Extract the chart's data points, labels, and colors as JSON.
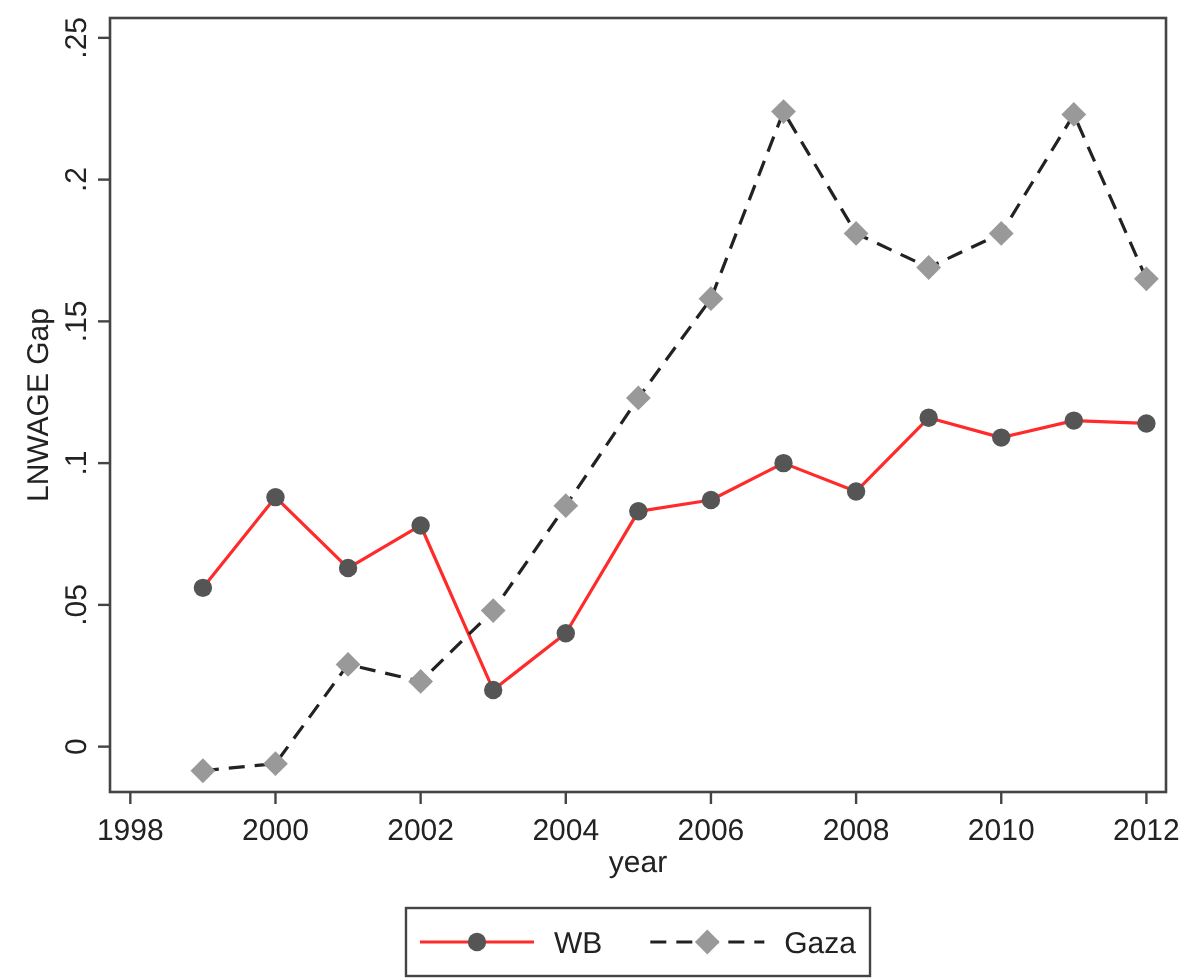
{
  "chart_data": {
    "type": "line",
    "xlabel": "year",
    "ylabel": "LNWAGE Gap",
    "xlim": [
      1997.72,
      2012.27
    ],
    "xticks": [
      1998,
      2000,
      2002,
      2004,
      2006,
      2008,
      2010,
      2012
    ],
    "ylim": [
      -0.016,
      0.257
    ],
    "yticks": [
      {
        "value": 0,
        "label": "0"
      },
      {
        "value": 0.05,
        "label": ".05"
      },
      {
        "value": 0.1,
        "label": ".1"
      },
      {
        "value": 0.15,
        "label": ".15"
      },
      {
        "value": 0.2,
        "label": ".2"
      },
      {
        "value": 0.25,
        "label": ".25"
      }
    ],
    "x": [
      1999,
      2000,
      2001,
      2002,
      2003,
      2004,
      2005,
      2006,
      2007,
      2008,
      2009,
      2010,
      2011,
      2012
    ],
    "legend": "bottom",
    "series": [
      {
        "name": "WB",
        "color": "#ff2a2a",
        "marker": "circle",
        "line_style": "solid",
        "colors": [
          "#555555",
          "#555555",
          "#555555",
          "#555555",
          "#555555",
          "#555555",
          "#555555",
          "#555555",
          "#555555",
          "#555555",
          "#555555",
          "#555555",
          "#555555",
          "#555555"
        ],
        "values": [
          0.056,
          0.088,
          0.063,
          0.078,
          0.02,
          0.04,
          0.083,
          0.087,
          0.1,
          0.09,
          0.116,
          0.109,
          0.115,
          0.114
        ]
      },
      {
        "name": "Gaza",
        "color": "#222222",
        "marker": "diamond",
        "line_style": "dashed",
        "colors": [
          "#999999",
          "#999999",
          "#999999",
          "#999999",
          "#999999",
          "#999999",
          "#999999",
          "#999999",
          "#999999",
          "#999999",
          "#999999",
          "#999999",
          "#999999",
          "#999999"
        ],
        "values": [
          -0.0085,
          -0.006,
          0.029,
          0.023,
          0.048,
          0.085,
          0.123,
          0.158,
          0.224,
          0.181,
          0.169,
          0.181,
          0.223,
          0.165
        ]
      }
    ]
  }
}
